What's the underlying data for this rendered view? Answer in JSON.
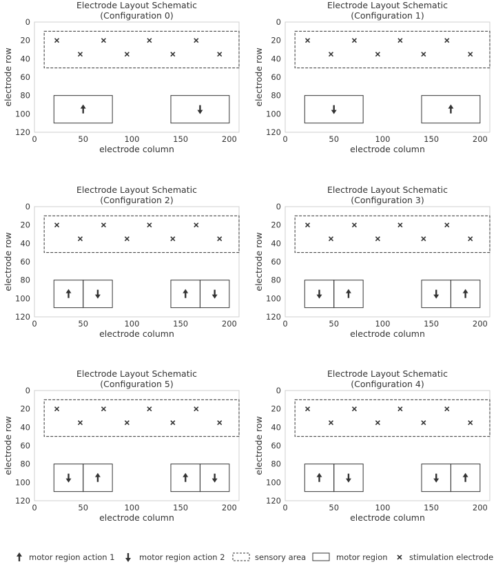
{
  "figure": {
    "axes_frame_color": "#cfcfcf",
    "shape_stroke_color": "#333333"
  },
  "chart_data": {
    "type": "scatter",
    "xlabel": "electrode column",
    "ylabel": "electrode row",
    "xlim": [
      0,
      210
    ],
    "ylim": [
      120,
      0
    ],
    "y_inverted": true,
    "xticks": [
      0,
      50,
      100,
      150,
      200
    ],
    "yticks": [
      0,
      20,
      40,
      60,
      80,
      100,
      120
    ],
    "grid": false,
    "sensory_area": {
      "x": [
        10,
        210
      ],
      "y": [
        10,
        50
      ]
    },
    "stimulation_electrodes": [
      {
        "x": 23,
        "y": 20
      },
      {
        "x": 71,
        "y": 20
      },
      {
        "x": 118,
        "y": 20
      },
      {
        "x": 166,
        "y": 20
      },
      {
        "x": 47,
        "y": 35
      },
      {
        "x": 95,
        "y": 35
      },
      {
        "x": 142,
        "y": 35
      },
      {
        "x": 190,
        "y": 35
      }
    ],
    "panels": [
      {
        "title": "Electrode Layout Schematic",
        "subtitle": "(Configuration 0)",
        "motor_regions": [
          {
            "x": [
              20,
              80
            ],
            "y": [
              80,
              110
            ],
            "action": "up"
          },
          {
            "x": [
              140,
              200
            ],
            "y": [
              80,
              110
            ],
            "action": "down"
          }
        ]
      },
      {
        "title": "Electrode Layout Schematic",
        "subtitle": "(Configuration 1)",
        "motor_regions": [
          {
            "x": [
              20,
              80
            ],
            "y": [
              80,
              110
            ],
            "action": "down"
          },
          {
            "x": [
              140,
              200
            ],
            "y": [
              80,
              110
            ],
            "action": "up"
          }
        ]
      },
      {
        "title": "Electrode Layout Schematic",
        "subtitle": "(Configuration 2)",
        "motor_regions": [
          {
            "x": [
              20,
              50
            ],
            "y": [
              80,
              110
            ],
            "action": "up"
          },
          {
            "x": [
              50,
              80
            ],
            "y": [
              80,
              110
            ],
            "action": "down"
          },
          {
            "x": [
              140,
              170
            ],
            "y": [
              80,
              110
            ],
            "action": "up"
          },
          {
            "x": [
              170,
              200
            ],
            "y": [
              80,
              110
            ],
            "action": "down"
          }
        ]
      },
      {
        "title": "Electrode Layout Schematic",
        "subtitle": "(Configuration 3)",
        "motor_regions": [
          {
            "x": [
              20,
              50
            ],
            "y": [
              80,
              110
            ],
            "action": "down"
          },
          {
            "x": [
              50,
              80
            ],
            "y": [
              80,
              110
            ],
            "action": "up"
          },
          {
            "x": [
              140,
              170
            ],
            "y": [
              80,
              110
            ],
            "action": "down"
          },
          {
            "x": [
              170,
              200
            ],
            "y": [
              80,
              110
            ],
            "action": "up"
          }
        ]
      },
      {
        "title": "Electrode Layout Schematic",
        "subtitle": "(Configuration 5)",
        "motor_regions": [
          {
            "x": [
              20,
              50
            ],
            "y": [
              80,
              110
            ],
            "action": "down"
          },
          {
            "x": [
              50,
              80
            ],
            "y": [
              80,
              110
            ],
            "action": "up"
          },
          {
            "x": [
              140,
              170
            ],
            "y": [
              80,
              110
            ],
            "action": "up"
          },
          {
            "x": [
              170,
              200
            ],
            "y": [
              80,
              110
            ],
            "action": "down"
          }
        ]
      },
      {
        "title": "Electrode Layout Schematic",
        "subtitle": "(Configuration 4)",
        "motor_regions": [
          {
            "x": [
              20,
              50
            ],
            "y": [
              80,
              110
            ],
            "action": "up"
          },
          {
            "x": [
              50,
              80
            ],
            "y": [
              80,
              110
            ],
            "action": "down"
          },
          {
            "x": [
              140,
              170
            ],
            "y": [
              80,
              110
            ],
            "action": "down"
          },
          {
            "x": [
              170,
              200
            ],
            "y": [
              80,
              110
            ],
            "action": "up"
          }
        ]
      }
    ],
    "legend": {
      "placement": "bottom",
      "items": [
        {
          "key": "action1",
          "label": "motor region action 1",
          "symbol": "arrow-up-icon"
        },
        {
          "key": "action2",
          "label": "motor region action 2",
          "symbol": "arrow-down-icon"
        },
        {
          "key": "sensory",
          "label": "sensory area",
          "symbol": "dashed-rect"
        },
        {
          "key": "motor",
          "label": "motor region",
          "symbol": "solid-rect"
        },
        {
          "key": "stim",
          "label": "stimulation electrode",
          "symbol": "x-marker"
        }
      ]
    }
  }
}
